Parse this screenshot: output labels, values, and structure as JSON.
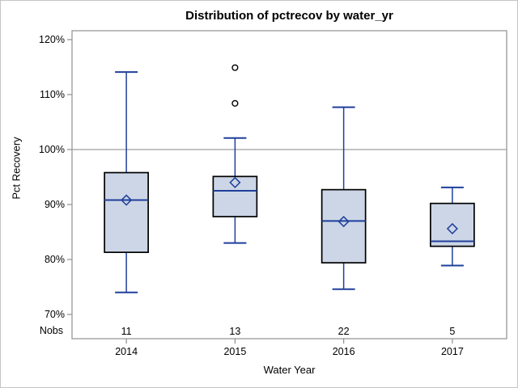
{
  "chart_data": {
    "type": "boxplot",
    "title": "Distribution of pctrecov by water_yr",
    "xlabel": "Water Year",
    "ylabel": "Pct Recovery",
    "categories": [
      "2014",
      "2015",
      "2016",
      "2017"
    ],
    "nobs_label": "Nobs",
    "nobs": [
      "11",
      "13",
      "22",
      "5"
    ],
    "y_ticks": [
      70,
      80,
      90,
      100,
      110,
      120
    ],
    "y_tick_labels": [
      "70%",
      "80%",
      "90%",
      "100%",
      "110%",
      "120%"
    ],
    "ylim": [
      65.6,
      121.6
    ],
    "grid": false,
    "legend": false,
    "reference_line": 100,
    "series": [
      {
        "category": "2014",
        "n": 11,
        "whisker_low": 74.0,
        "q1": 81.3,
        "median": 90.8,
        "q3": 95.8,
        "whisker_high": 114.1,
        "mean": 90.8,
        "outliers": []
      },
      {
        "category": "2015",
        "n": 13,
        "whisker_low": 83.0,
        "q1": 87.8,
        "median": 92.5,
        "q3": 95.1,
        "whisker_high": 102.1,
        "mean": 94.0,
        "outliers": [
          108.4,
          114.9
        ]
      },
      {
        "category": "2016",
        "n": 22,
        "whisker_low": 74.6,
        "q1": 79.4,
        "median": 87.0,
        "q3": 92.7,
        "whisker_high": 107.7,
        "mean": 86.9,
        "outliers": []
      },
      {
        "category": "2017",
        "n": 5,
        "whisker_low": 78.9,
        "q1": 82.4,
        "median": 83.3,
        "q3": 90.2,
        "whisker_high": 93.1,
        "mean": 85.6,
        "outliers": []
      }
    ],
    "colors": {
      "box_fill": "#ccd6e6",
      "box_outline": "#000000",
      "line_blue": "#1f3f9b",
      "outlier_stroke": "#000000",
      "outlier_fill": "#ffffff",
      "axis_gray": "#8f8f8f",
      "reference_line_gray": "#9f9f9f",
      "text": "#000000",
      "figure_border": "#c4c4c4",
      "background": "#ffffff"
    }
  }
}
